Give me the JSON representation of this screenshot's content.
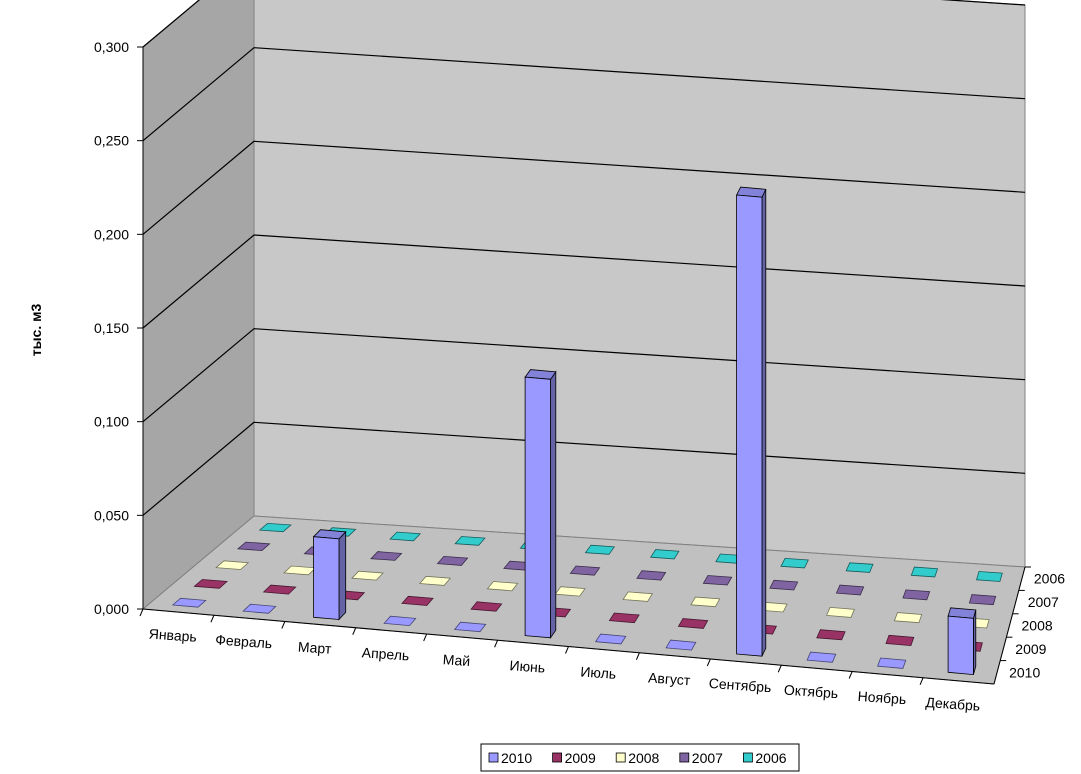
{
  "chart_data": {
    "type": "bar",
    "ylabel": "тыс. м3",
    "categories": [
      "Январь",
      "Февраль",
      "Март",
      "Апрель",
      "Май",
      "Июнь",
      "Июль",
      "Август",
      "Сентябрь",
      "Октябрь",
      "Ноябрь",
      "Декабрь"
    ],
    "y_ticks": [
      "0,000",
      "0,050",
      "0,100",
      "0,150",
      "0,200",
      "0,250",
      "0,300"
    ],
    "ylim": [
      0,
      0.3
    ],
    "depth_labels": [
      "2006",
      "2007",
      "2008",
      "2009",
      "2010"
    ],
    "series": [
      {
        "name": "2010",
        "color": "#9999ff",
        "values": [
          0,
          0,
          0.043,
          0,
          0,
          0.138,
          0,
          0,
          0.245,
          0,
          0,
          0.03
        ]
      },
      {
        "name": "2009",
        "color": "#993366",
        "values": [
          0,
          0,
          0,
          0,
          0,
          0,
          0,
          0,
          0,
          0,
          0,
          0
        ]
      },
      {
        "name": "2008",
        "color": "#ffffcc",
        "values": [
          0,
          0,
          0,
          0,
          0,
          0,
          0,
          0,
          0,
          0,
          0,
          0
        ]
      },
      {
        "name": "2007",
        "color": "#8064a2",
        "values": [
          0,
          0,
          0,
          0,
          0,
          0,
          0,
          0,
          0,
          0,
          0,
          0
        ]
      },
      {
        "name": "2006",
        "color": "#33cccc",
        "values": [
          0,
          0,
          0,
          0,
          0,
          0,
          0,
          0,
          0,
          0,
          0,
          0
        ]
      }
    ],
    "legend_order": [
      "2010",
      "2009",
      "2008",
      "2007",
      "2006"
    ],
    "legend_position": "bottom",
    "grid": true,
    "view": "3d-column"
  }
}
